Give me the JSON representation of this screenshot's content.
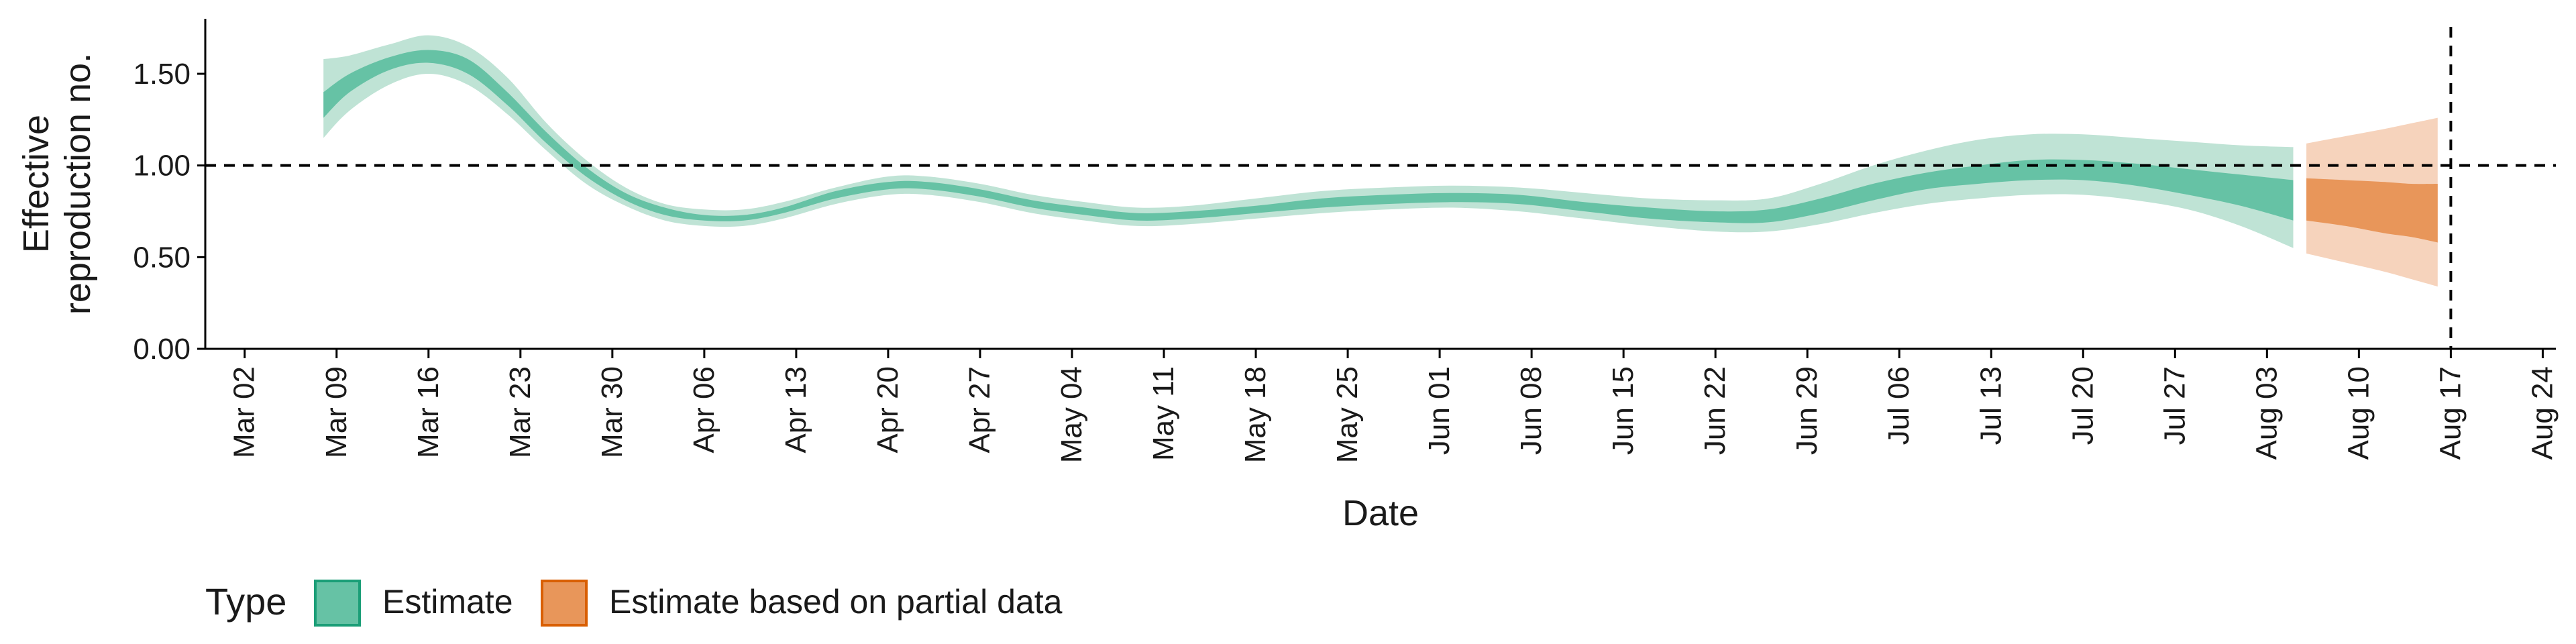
{
  "chart_data": {
    "type": "area",
    "title": "",
    "xlabel": "Date",
    "ylabel_lines": [
      "Effective",
      "reproduction no."
    ],
    "ylim": [
      0,
      1.8
    ],
    "xlim": [
      "2020-02-28",
      "2020-08-25"
    ],
    "y_ticks": [
      {
        "value": 0.0,
        "label": "0.00"
      },
      {
        "value": 0.5,
        "label": "0.50"
      },
      {
        "value": 1.0,
        "label": "1.00"
      },
      {
        "value": 1.5,
        "label": "1.50"
      }
    ],
    "x_ticks": [
      {
        "date": "2020-03-02",
        "label": "Mar 02"
      },
      {
        "date": "2020-03-09",
        "label": "Mar 09"
      },
      {
        "date": "2020-03-16",
        "label": "Mar 16"
      },
      {
        "date": "2020-03-23",
        "label": "Mar 23"
      },
      {
        "date": "2020-03-30",
        "label": "Mar 30"
      },
      {
        "date": "2020-04-06",
        "label": "Apr 06"
      },
      {
        "date": "2020-04-13",
        "label": "Apr 13"
      },
      {
        "date": "2020-04-20",
        "label": "Apr 20"
      },
      {
        "date": "2020-04-27",
        "label": "Apr 27"
      },
      {
        "date": "2020-05-04",
        "label": "May 04"
      },
      {
        "date": "2020-05-11",
        "label": "May 11"
      },
      {
        "date": "2020-05-18",
        "label": "May 18"
      },
      {
        "date": "2020-05-25",
        "label": "May 25"
      },
      {
        "date": "2020-06-01",
        "label": "Jun 01"
      },
      {
        "date": "2020-06-08",
        "label": "Jun 08"
      },
      {
        "date": "2020-06-15",
        "label": "Jun 15"
      },
      {
        "date": "2020-06-22",
        "label": "Jun 22"
      },
      {
        "date": "2020-06-29",
        "label": "Jun 29"
      },
      {
        "date": "2020-07-06",
        "label": "Jul 06"
      },
      {
        "date": "2020-07-13",
        "label": "Jul 13"
      },
      {
        "date": "2020-07-20",
        "label": "Jul 20"
      },
      {
        "date": "2020-07-27",
        "label": "Jul 27"
      },
      {
        "date": "2020-08-03",
        "label": "Aug 03"
      },
      {
        "date": "2020-08-10",
        "label": "Aug 10"
      },
      {
        "date": "2020-08-17",
        "label": "Aug 17"
      },
      {
        "date": "2020-08-24",
        "label": "Aug 24"
      }
    ],
    "reference_lines": {
      "h": 1.0,
      "v": "2020-08-17"
    },
    "grid": false,
    "legend": {
      "title": "Type",
      "position": "bottom-left",
      "entries": [
        {
          "label": "Estimate",
          "fill": "#66c2a5",
          "border": "#1b9e77"
        },
        {
          "label": "Estimate based on partial data",
          "fill": "#e8965a",
          "border": "#d95f02"
        }
      ]
    },
    "series": [
      {
        "legend_label": "Estimate",
        "colors": {
          "outer": "#bfe3d5",
          "inner": "#66c2a5"
        },
        "points": [
          {
            "x": "2020-03-08",
            "lo90": 1.15,
            "lo50": 1.26,
            "hi50": 1.4,
            "hi90": 1.58
          },
          {
            "x": "2020-03-10",
            "lo90": 1.3,
            "lo50": 1.4,
            "hi50": 1.5,
            "hi90": 1.6
          },
          {
            "x": "2020-03-13",
            "lo90": 1.44,
            "lo50": 1.52,
            "hi50": 1.59,
            "hi90": 1.66
          },
          {
            "x": "2020-03-16",
            "lo90": 1.5,
            "lo50": 1.56,
            "hi50": 1.63,
            "hi90": 1.71
          },
          {
            "x": "2020-03-19",
            "lo90": 1.44,
            "lo50": 1.5,
            "hi50": 1.58,
            "hi90": 1.65
          },
          {
            "x": "2020-03-22",
            "lo90": 1.28,
            "lo50": 1.33,
            "hi50": 1.4,
            "hi90": 1.48
          },
          {
            "x": "2020-03-25",
            "lo90": 1.08,
            "lo50": 1.12,
            "hi50": 1.18,
            "hi90": 1.23
          },
          {
            "x": "2020-03-28",
            "lo90": 0.9,
            "lo50": 0.94,
            "hi50": 0.99,
            "hi90": 1.03
          },
          {
            "x": "2020-03-31",
            "lo90": 0.78,
            "lo50": 0.81,
            "hi50": 0.85,
            "hi90": 0.88
          },
          {
            "x": "2020-04-03",
            "lo90": 0.7,
            "lo50": 0.73,
            "hi50": 0.77,
            "hi90": 0.79
          },
          {
            "x": "2020-04-06",
            "lo90": 0.67,
            "lo50": 0.7,
            "hi50": 0.73,
            "hi90": 0.76
          },
          {
            "x": "2020-04-09",
            "lo90": 0.67,
            "lo50": 0.7,
            "hi50": 0.73,
            "hi90": 0.76
          },
          {
            "x": "2020-04-12",
            "lo90": 0.71,
            "lo50": 0.74,
            "hi50": 0.77,
            "hi90": 0.8
          },
          {
            "x": "2020-04-16",
            "lo90": 0.79,
            "lo50": 0.82,
            "hi50": 0.86,
            "hi90": 0.88
          },
          {
            "x": "2020-04-20",
            "lo90": 0.84,
            "lo50": 0.87,
            "hi50": 0.91,
            "hi90": 0.94
          },
          {
            "x": "2020-04-23",
            "lo90": 0.84,
            "lo50": 0.87,
            "hi50": 0.91,
            "hi90": 0.94
          },
          {
            "x": "2020-04-27",
            "lo90": 0.8,
            "lo50": 0.83,
            "hi50": 0.87,
            "hi90": 0.9
          },
          {
            "x": "2020-05-01",
            "lo90": 0.74,
            "lo50": 0.77,
            "hi50": 0.81,
            "hi90": 0.84
          },
          {
            "x": "2020-05-05",
            "lo90": 0.7,
            "lo50": 0.73,
            "hi50": 0.77,
            "hi90": 0.8
          },
          {
            "x": "2020-05-09",
            "lo90": 0.67,
            "lo50": 0.7,
            "hi50": 0.74,
            "hi90": 0.77
          },
          {
            "x": "2020-05-13",
            "lo90": 0.68,
            "lo50": 0.71,
            "hi50": 0.75,
            "hi90": 0.78
          },
          {
            "x": "2020-05-18",
            "lo90": 0.71,
            "lo50": 0.74,
            "hi50": 0.78,
            "hi90": 0.82
          },
          {
            "x": "2020-05-23",
            "lo90": 0.74,
            "lo50": 0.77,
            "hi50": 0.82,
            "hi90": 0.86
          },
          {
            "x": "2020-05-28",
            "lo90": 0.76,
            "lo50": 0.79,
            "hi50": 0.84,
            "hi90": 0.88
          },
          {
            "x": "2020-06-02",
            "lo90": 0.77,
            "lo50": 0.8,
            "hi50": 0.85,
            "hi90": 0.89
          },
          {
            "x": "2020-06-07",
            "lo90": 0.75,
            "lo50": 0.79,
            "hi50": 0.84,
            "hi90": 0.88
          },
          {
            "x": "2020-06-12",
            "lo90": 0.71,
            "lo50": 0.75,
            "hi50": 0.8,
            "hi90": 0.85
          },
          {
            "x": "2020-06-17",
            "lo90": 0.67,
            "lo50": 0.71,
            "hi50": 0.77,
            "hi90": 0.82
          },
          {
            "x": "2020-06-22",
            "lo90": 0.64,
            "lo50": 0.69,
            "hi50": 0.75,
            "hi90": 0.81
          },
          {
            "x": "2020-06-26",
            "lo90": 0.64,
            "lo50": 0.69,
            "hi50": 0.76,
            "hi90": 0.82
          },
          {
            "x": "2020-06-30",
            "lo90": 0.68,
            "lo50": 0.74,
            "hi50": 0.82,
            "hi90": 0.9
          },
          {
            "x": "2020-07-04",
            "lo90": 0.74,
            "lo50": 0.81,
            "hi50": 0.9,
            "hi90": 1.0
          },
          {
            "x": "2020-07-08",
            "lo90": 0.79,
            "lo50": 0.87,
            "hi50": 0.96,
            "hi90": 1.08
          },
          {
            "x": "2020-07-12",
            "lo90": 0.82,
            "lo50": 0.9,
            "hi50": 1.0,
            "hi90": 1.14
          },
          {
            "x": "2020-07-16",
            "lo90": 0.84,
            "lo50": 0.92,
            "hi50": 1.03,
            "hi90": 1.17
          },
          {
            "x": "2020-07-20",
            "lo90": 0.84,
            "lo50": 0.92,
            "hi50": 1.03,
            "hi90": 1.17
          },
          {
            "x": "2020-07-24",
            "lo90": 0.81,
            "lo50": 0.89,
            "hi50": 1.01,
            "hi90": 1.15
          },
          {
            "x": "2020-07-28",
            "lo90": 0.76,
            "lo50": 0.84,
            "hi50": 0.98,
            "hi90": 1.13
          },
          {
            "x": "2020-08-01",
            "lo90": 0.67,
            "lo50": 0.78,
            "hi50": 0.95,
            "hi90": 1.11
          },
          {
            "x": "2020-08-05",
            "lo90": 0.55,
            "lo50": 0.7,
            "hi50": 0.92,
            "hi90": 1.1
          }
        ]
      },
      {
        "legend_label": "Estimate based on partial data",
        "colors": {
          "outer": "#f6d3bc",
          "inner": "#e8965a"
        },
        "points": [
          {
            "x": "2020-08-06",
            "lo90": 0.52,
            "lo50": 0.7,
            "hi50": 0.93,
            "hi90": 1.12
          },
          {
            "x": "2020-08-09",
            "lo90": 0.47,
            "lo50": 0.67,
            "hi50": 0.92,
            "hi90": 1.16
          },
          {
            "x": "2020-08-12",
            "lo90": 0.42,
            "lo50": 0.63,
            "hi50": 0.91,
            "hi90": 1.2
          },
          {
            "x": "2020-08-14",
            "lo90": 0.38,
            "lo50": 0.61,
            "hi50": 0.9,
            "hi90": 1.23
          },
          {
            "x": "2020-08-16",
            "lo90": 0.34,
            "lo50": 0.58,
            "hi50": 0.9,
            "hi90": 1.26
          }
        ]
      }
    ]
  }
}
